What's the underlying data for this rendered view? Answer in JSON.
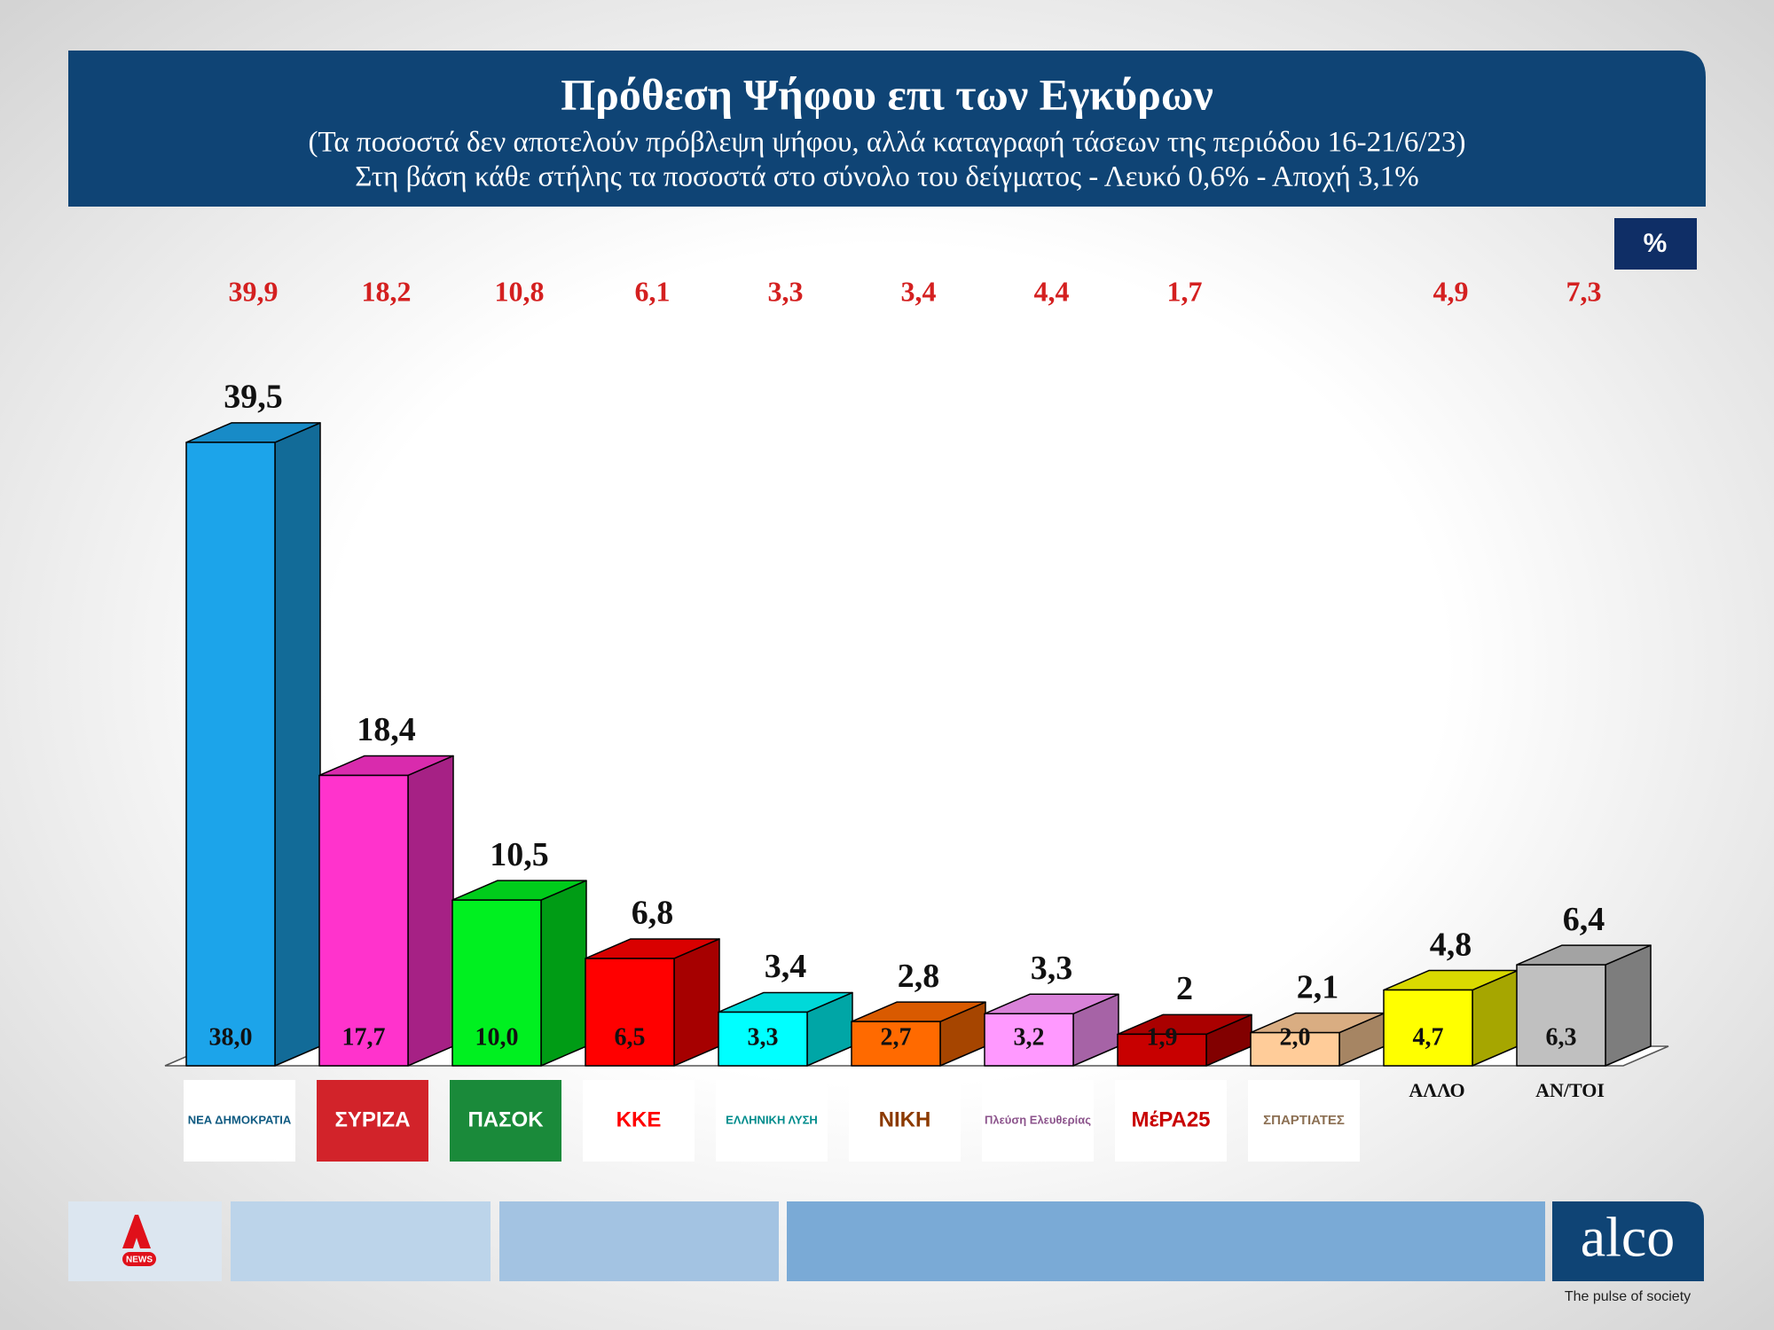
{
  "chart_data": {
    "type": "bar3d",
    "title": "Πρόθεση Ψήφου επι των Εγκύρων",
    "subtitle": "(Τα ποσοστά δεν αποτελούν πρόβλεψη ψήφου, αλλά καταγραφή τάσεων της περιόδου  16-21/6/23)",
    "note": "Στη βάση κάθε στήλης τα ποσοστά στο σύνολο του δείγματος - Λευκό 0,6% - Αποχή 3,1%",
    "unit": "%",
    "categories": [
      "ΝΕΑ ΔΗΜΟΚΡΑΤΙΑ",
      "ΣΥΡΙΖΑ",
      "ΠΑΣΟΚ",
      "ΚΚΕ",
      "ΕΛΛΗΝΙΚΗ ΛΥΣΗ",
      "ΝΙΚΗ",
      "Πλεύση Ελευθερίας",
      "ΜέΡΑ25",
      "ΣΠΑΡΤΙΑΤΕΣ",
      "ΑΛΛΟ",
      "ΑΝ/ΤΟΙ"
    ],
    "colors": [
      "#1ca4ea",
      "#ff33cc",
      "#00f020",
      "#ff0000",
      "#00ffff",
      "#ff6a00",
      "#ff99ff",
      "#c80000",
      "#ffcc99",
      "#ffff00",
      "#c0c0c0"
    ],
    "values": [
      39.5,
      18.4,
      10.5,
      6.8,
      3.4,
      2.8,
      3.3,
      2,
      2.1,
      4.8,
      6.4
    ],
    "value_labels": [
      "39,5",
      "18,4",
      "10,5",
      "6,8",
      "3,4",
      "2,8",
      "3,3",
      "2",
      "2,1",
      "4,8",
      "6,4"
    ],
    "base_values": [
      38.0,
      17.7,
      10.0,
      6.5,
      3.3,
      2.7,
      3.2,
      1.9,
      2.0,
      4.7,
      6.3
    ],
    "base_value_labels": [
      "38,0",
      "17,7",
      "10,0",
      "6,5",
      "3,3",
      "2,7",
      "3,2",
      "1,9",
      "2,0",
      "4,7",
      "6,3"
    ],
    "previous_values": [
      39.9,
      18.2,
      10.8,
      6.1,
      3.3,
      3.4,
      4.4,
      1.7,
      null,
      4.9,
      7.3
    ],
    "previous_value_labels": [
      "39,9",
      "18,2",
      "10,8",
      "6,1",
      "3,3",
      "3,4",
      "4,4",
      "1,7",
      null,
      "4,9",
      "7,3"
    ]
  },
  "footer": {
    "channel": "NEWS",
    "brand": "alco",
    "tagline": "The pulse of society"
  }
}
